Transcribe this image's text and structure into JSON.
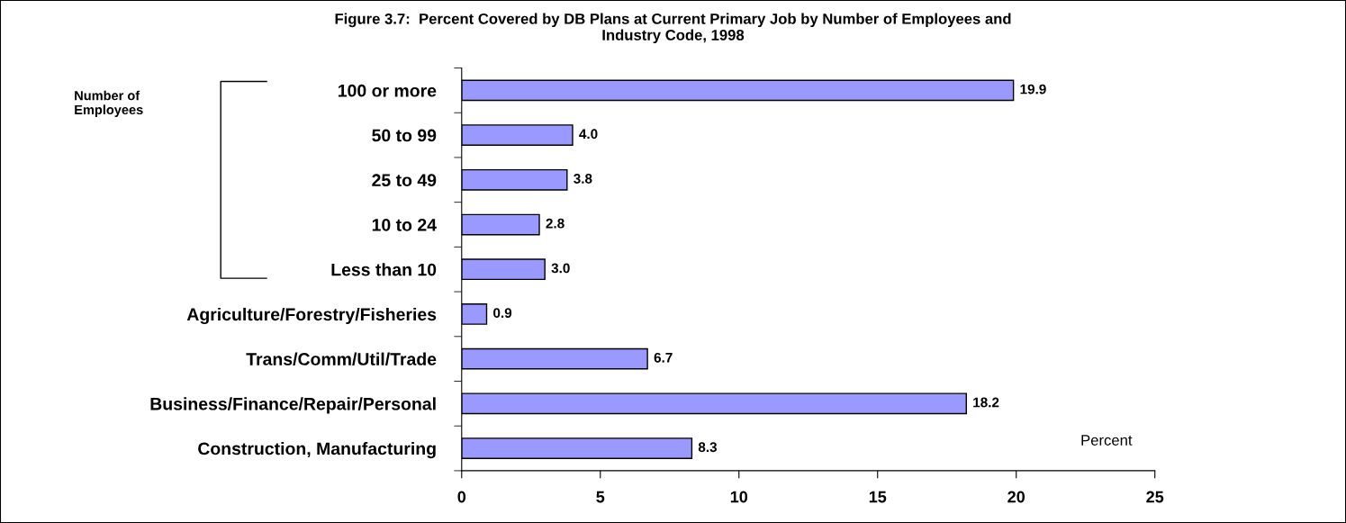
{
  "chart_data": {
    "type": "bar",
    "orientation": "horizontal",
    "title": "Figure 3.7:  Percent Covered by DB Plans at Current Primary Job by Number of Employees and\nIndustry Code, 1998",
    "xlabel": "Percent",
    "categories": [
      "100 or more",
      "50 to 99",
      "25 to 49",
      "10 to 24",
      "Less than 10",
      "Agriculture/Forestry/Fisheries",
      "Trans/Comm/Util/Trade",
      "Business/Finance/Repair/Personal",
      "Construction, Manufacturing"
    ],
    "values": [
      19.9,
      4.0,
      3.8,
      2.8,
      3.0,
      0.9,
      6.7,
      18.2,
      8.3
    ],
    "value_labels": [
      "19.9",
      "4.0",
      "3.8",
      "2.8",
      "3.0",
      "0.9",
      "6.7",
      "18.2",
      "8.3"
    ],
    "color": "#9999ff",
    "xlim": [
      0,
      25
    ],
    "xticks": [
      0,
      5,
      10,
      15,
      20,
      25
    ],
    "grid": false,
    "legend": false,
    "annotations": [
      "Number of\nEmployees"
    ]
  }
}
